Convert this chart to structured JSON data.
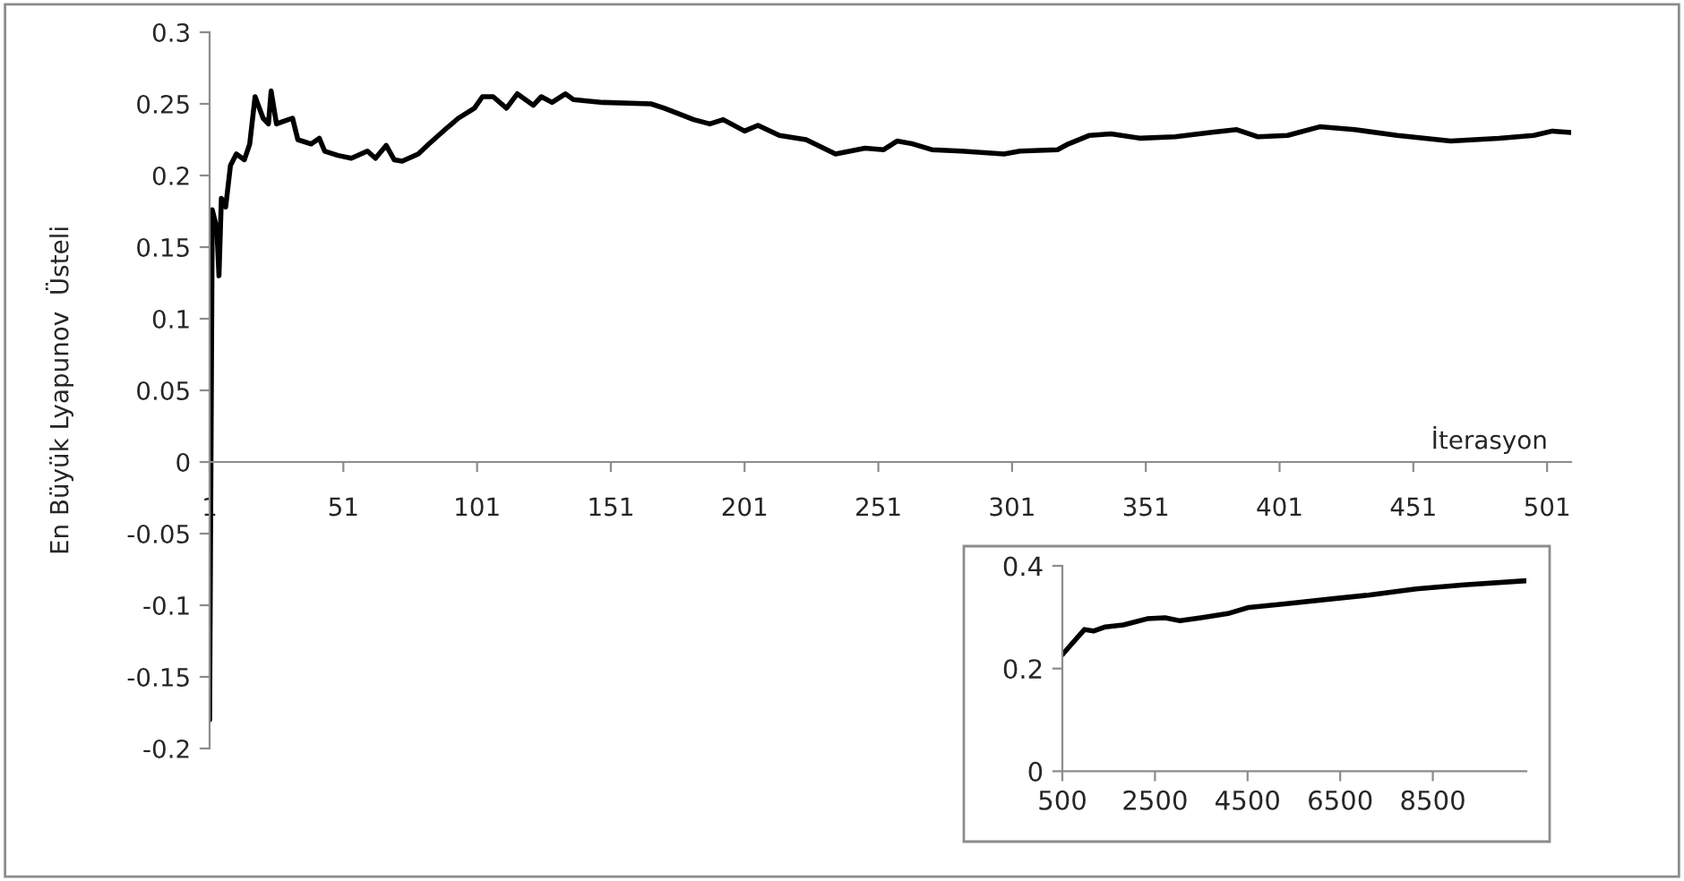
{
  "chart_data": [
    {
      "type": "line",
      "xlabel": "İterasyon",
      "ylabel": "En Büyük Lyapunov  Üsteli",
      "xlim": [
        1,
        510
      ],
      "ylim": [
        -0.2,
        0.3
      ],
      "xticks": [
        1,
        51,
        101,
        151,
        201,
        251,
        301,
        351,
        401,
        451,
        501
      ],
      "yticks": [
        -0.2,
        -0.15,
        -0.1,
        -0.05,
        0,
        0.05,
        0.1,
        0.15,
        0.2,
        0.25,
        0.3
      ],
      "series": [
        {
          "color": "#000000",
          "x": [
            1,
            2,
            3.7,
            4.5,
            5.4,
            7,
            8.8,
            11,
            14,
            16,
            18,
            21,
            23,
            24,
            26,
            29,
            32,
            34,
            39,
            42,
            44,
            49,
            54,
            60,
            63,
            67,
            70,
            73,
            79,
            83,
            89,
            94,
            100,
            103,
            107,
            112,
            116,
            122,
            125,
            129,
            134,
            137,
            148,
            166,
            171,
            182,
            188,
            193,
            201,
            206,
            214,
            224,
            235,
            246,
            253,
            258,
            264,
            271,
            282,
            298,
            304,
            318,
            322,
            330,
            338,
            349,
            362,
            375,
            385,
            393,
            404,
            416,
            429,
            445,
            465,
            483,
            496,
            503,
            510
          ],
          "values": [
            -0.18,
            0.176,
            0.163,
            0.13,
            0.184,
            0.178,
            0.207,
            0.215,
            0.211,
            0.222,
            0.255,
            0.24,
            0.236,
            0.259,
            0.236,
            0.238,
            0.24,
            0.225,
            0.222,
            0.226,
            0.217,
            0.214,
            0.212,
            0.217,
            0.212,
            0.221,
            0.211,
            0.21,
            0.215,
            0.222,
            0.232,
            0.24,
            0.247,
            0.255,
            0.255,
            0.247,
            0.257,
            0.249,
            0.255,
            0.251,
            0.257,
            0.253,
            0.251,
            0.25,
            0.247,
            0.239,
            0.236,
            0.239,
            0.231,
            0.235,
            0.228,
            0.225,
            0.215,
            0.219,
            0.218,
            0.224,
            0.222,
            0.218,
            0.217,
            0.215,
            0.217,
            0.218,
            0.222,
            0.228,
            0.229,
            0.226,
            0.227,
            0.23,
            0.232,
            0.227,
            0.228,
            0.234,
            0.232,
            0.228,
            0.224,
            0.226,
            0.228,
            0.231,
            0.23
          ]
        }
      ]
    },
    {
      "type": "line",
      "xlim": [
        500,
        10520
      ],
      "ylim": [
        0,
        0.4
      ],
      "xticks": [
        500,
        2500,
        4500,
        6500,
        8500
      ],
      "yticks": [
        0,
        0.2,
        0.4
      ],
      "series": [
        {
          "color": "#000000",
          "x": [
            500,
            655,
            977,
            1171,
            1429,
            1816,
            2332,
            2719,
            3042,
            3494,
            4074,
            4526,
            5300,
            6461,
            7106,
            8139,
            9171,
            10520
          ],
          "values": [
            0.227,
            0.243,
            0.276,
            0.273,
            0.281,
            0.285,
            0.297,
            0.299,
            0.293,
            0.299,
            0.307,
            0.319,
            0.326,
            0.337,
            0.343,
            0.355,
            0.363,
            0.371
          ]
        }
      ]
    }
  ]
}
